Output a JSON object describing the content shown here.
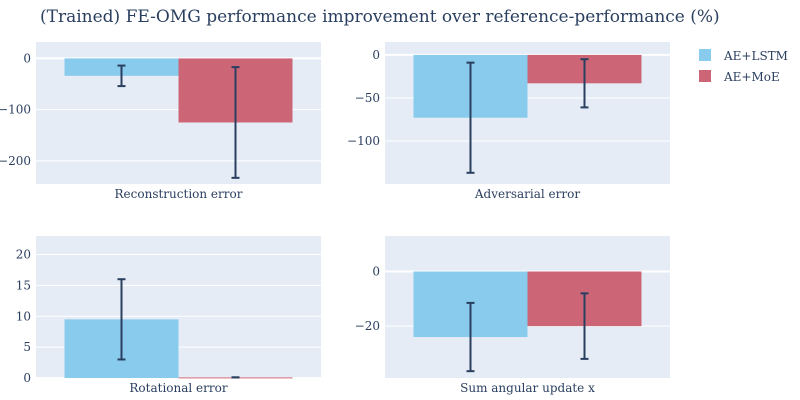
{
  "title": "(Trained) FE-OMG performance improvement over reference-performance (%)",
  "colors": {
    "plot_bg": "#e5ecf6",
    "grid": "#ffffff",
    "error_bar": "#2a3f5f",
    "text": "#2a3f5f"
  },
  "legend": [
    {
      "name": "AE+LSTM",
      "color": "#89cbec"
    },
    {
      "name": "AE+MoE",
      "color": "#cc6677"
    }
  ],
  "chart_data": [
    {
      "type": "bar",
      "category": "Reconstruction error",
      "ylim": [
        -245,
        32
      ],
      "yticks": [
        0,
        -100,
        -200
      ],
      "series": [
        {
          "name": "AE+LSTM",
          "value": -34,
          "error": 20
        },
        {
          "name": "AE+MoE",
          "value": -125,
          "error": 108
        }
      ]
    },
    {
      "type": "bar",
      "category": "Adversarial error",
      "ylim": [
        -150,
        15
      ],
      "yticks": [
        0,
        -50,
        -100
      ],
      "series": [
        {
          "name": "AE+LSTM",
          "value": -73,
          "error": 64
        },
        {
          "name": "AE+MoE",
          "value": -33,
          "error": 28
        }
      ]
    },
    {
      "type": "bar",
      "category": "Rotational error",
      "ylim": [
        0,
        23
      ],
      "yticks": [
        0,
        5,
        10,
        15,
        20
      ],
      "series": [
        {
          "name": "AE+LSTM",
          "value": 9.5,
          "error": 6.5
        },
        {
          "name": "AE+MoE",
          "value": 0.1,
          "error": 0
        }
      ]
    },
    {
      "type": "bar",
      "category": "Sum angular update x",
      "ylim": [
        -39,
        13
      ],
      "yticks": [
        0,
        -20
      ],
      "series": [
        {
          "name": "AE+LSTM",
          "value": -24,
          "error": 12.5
        },
        {
          "name": "AE+MoE",
          "value": -20,
          "error": 12
        }
      ]
    }
  ]
}
